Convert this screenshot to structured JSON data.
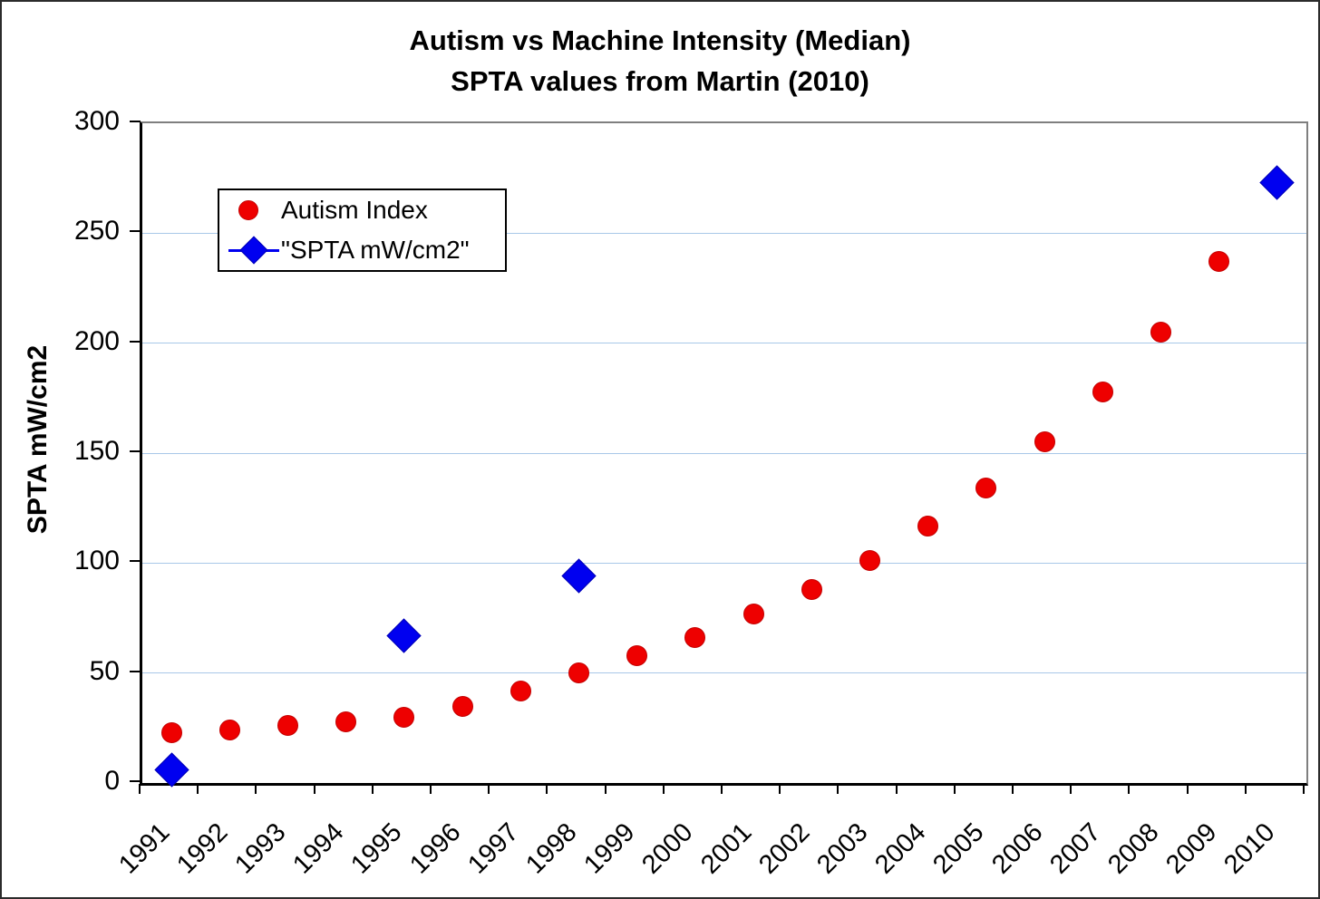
{
  "chart_data": {
    "type": "scatter",
    "title": "Autism vs Machine Intensity (Median)",
    "subtitle": "SPTA values from Martin (2010)",
    "xlabel": "",
    "ylabel": "SPTA mW/cm2",
    "ylim": [
      0,
      300
    ],
    "ytick_interval": 50,
    "yticks": [
      0,
      50,
      100,
      150,
      200,
      250,
      300
    ],
    "grid": "horizontal-only",
    "gridline_color": "#a8c8e8",
    "legend_position": "inside-upper-left",
    "categories": [
      "1991",
      "1992",
      "1993",
      "1994",
      "1995",
      "1996",
      "1997",
      "1998",
      "1999",
      "2000",
      "2001",
      "2002",
      "2003",
      "2004",
      "2005",
      "2006",
      "2007",
      "2008",
      "2009",
      "2010"
    ],
    "series": [
      {
        "name": "Autism Index",
        "marker": "circle",
        "color": "#ee0000",
        "line_in_legend": false,
        "values": [
          23,
          24,
          26,
          28,
          30,
          35,
          42,
          50,
          58,
          66,
          77,
          88,
          101,
          117,
          134,
          155,
          178,
          205,
          237,
          null
        ]
      },
      {
        "name": "\"SPTA mW/cm2\"",
        "marker": "diamond",
        "color": "#0000f0",
        "line_in_legend": true,
        "values": [
          6,
          null,
          null,
          null,
          67,
          null,
          null,
          94,
          null,
          null,
          null,
          null,
          null,
          null,
          null,
          null,
          null,
          null,
          null,
          273
        ]
      }
    ]
  }
}
